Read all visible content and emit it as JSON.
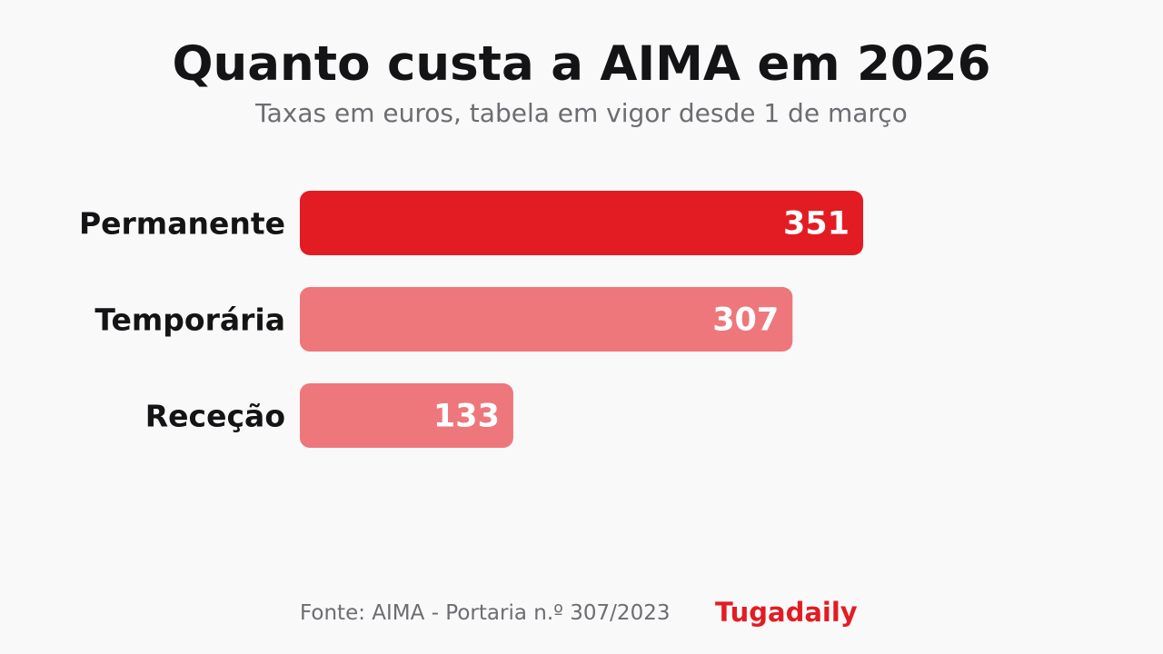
{
  "colors": {
    "background": "#f9f9f9",
    "highlight_bar": "#e31c23",
    "muted_bar": "#ee777c",
    "title": "#141416",
    "subtitle": "#6c6c72",
    "brand": "#e31c23",
    "value_label": "#ffffff"
  },
  "chart_data": {
    "type": "bar",
    "orientation": "horizontal",
    "title": "Quanto custa a AIMA em 2026",
    "subtitle": "Taxas em euros, tabela em vigor desde 1 de março",
    "categories": [
      "Permanente",
      "Temporária",
      "Receção"
    ],
    "values": [
      351,
      307,
      133
    ],
    "highlighted": [
      "Permanente"
    ],
    "data_labels": [
      "351",
      "307",
      "133"
    ],
    "xlabel": "",
    "ylabel": "",
    "grid": false,
    "legend": "none"
  },
  "footer": {
    "source": "Fonte: AIMA - Portaria n.º 307/2023",
    "brand": "Tugadaily"
  }
}
